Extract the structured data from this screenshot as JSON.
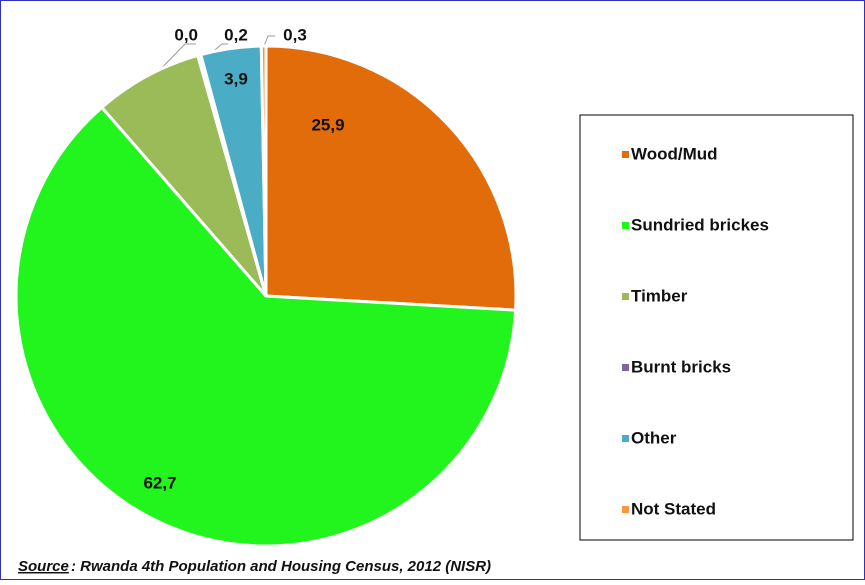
{
  "chart_data": {
    "type": "pie",
    "categories": [
      "Wood/Mud",
      "Sundried brickes",
      "Timber",
      "Burnt bricks",
      "Other",
      "Not Stated"
    ],
    "values": [
      25.9,
      62.7,
      7.0,
      0.2,
      3.9,
      0.3
    ],
    "value_labels": [
      "25,9",
      "62,7",
      null,
      "0,2",
      "3,9",
      "0,3"
    ],
    "colors": [
      "#e36c0a",
      "#22f51e",
      "#9bbb59",
      "#8064a2",
      "#4bacc6",
      "#f79646"
    ],
    "annotations": [
      "0,0"
    ],
    "source_label": "Source",
    "source": ": Rwanda 4th Population and Housing Census, 2012 (NISR)"
  }
}
